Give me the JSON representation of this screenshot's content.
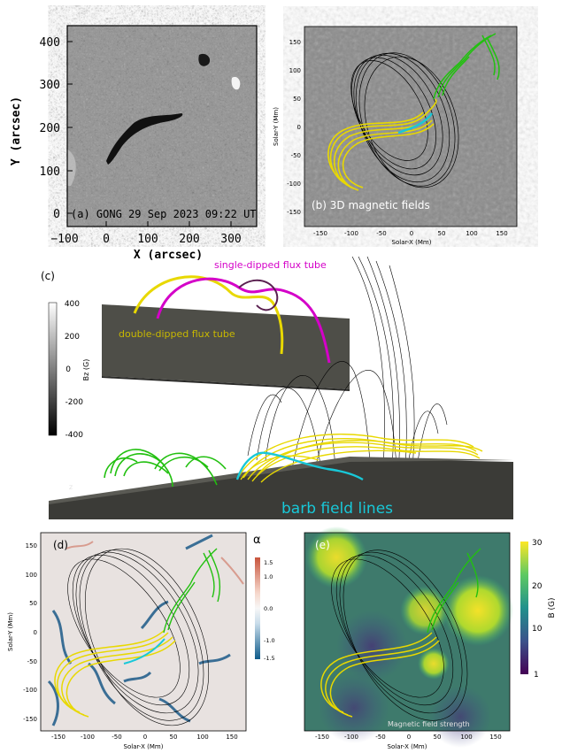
{
  "figure": {
    "panel_a": {
      "label": "(a) GONG 29 Sep 2023 09:22 UT",
      "xlabel": "X (arcsec)",
      "ylabel": "Y (arcsec)",
      "xticks": [
        "−100",
        "0",
        "100",
        "200",
        "300"
      ],
      "yticks": [
        "0",
        "100",
        "200",
        "300",
        "400"
      ]
    },
    "panel_b": {
      "label": "(b) 3D magnetic fields",
      "xlabel": "Solar-X (Mm)",
      "ylabel": "Solar-Y (Mm)",
      "xticks": [
        "-150",
        "-100",
        "-50",
        "0",
        "50",
        "100",
        "150"
      ],
      "yticks": [
        "150",
        "100",
        "50",
        "0",
        "-50",
        "-100",
        "-150"
      ]
    },
    "panel_c": {
      "label": "(c)",
      "single_dipped": "single-dipped flux tube",
      "double_dipped": "double-dipped flux tube",
      "barb": "barb field lines",
      "colorbar_label": "Bz (G)",
      "colorbar_ticks": [
        "400",
        "200",
        "0",
        "-200",
        "-400"
      ],
      "axis_letter": "Z"
    },
    "panel_d": {
      "label": "(d)",
      "xlabel": "Solar-X (Mm)",
      "ylabel": "Solar-Y (Mm)",
      "xticks": [
        "-150",
        "-100",
        "-50",
        "0",
        "50",
        "100",
        "150"
      ],
      "yticks": [
        "150",
        "100",
        "50",
        "0",
        "-50",
        "-100",
        "-150"
      ],
      "colorbar_label": "α",
      "colorbar_ticks": [
        "1.5",
        "1.0",
        "0.0",
        "-1.0",
        "-1.5"
      ]
    },
    "panel_e": {
      "label": "(e)",
      "caption": "Magnetic field strength",
      "xlabel": "Solar-X (Mm)",
      "xticks": [
        "-150",
        "-100",
        "-50",
        "0",
        "50",
        "100",
        "150"
      ],
      "colorbar_label": "B (G)",
      "colorbar_ticks": [
        "30",
        "20",
        "10",
        "1"
      ]
    },
    "colors": {
      "yellow_tube": "#e8d800",
      "magenta_tube": "#d400c8",
      "green_lines": "#22c010",
      "cyan_lines": "#18c8d8",
      "black_lines": "#000000"
    }
  }
}
